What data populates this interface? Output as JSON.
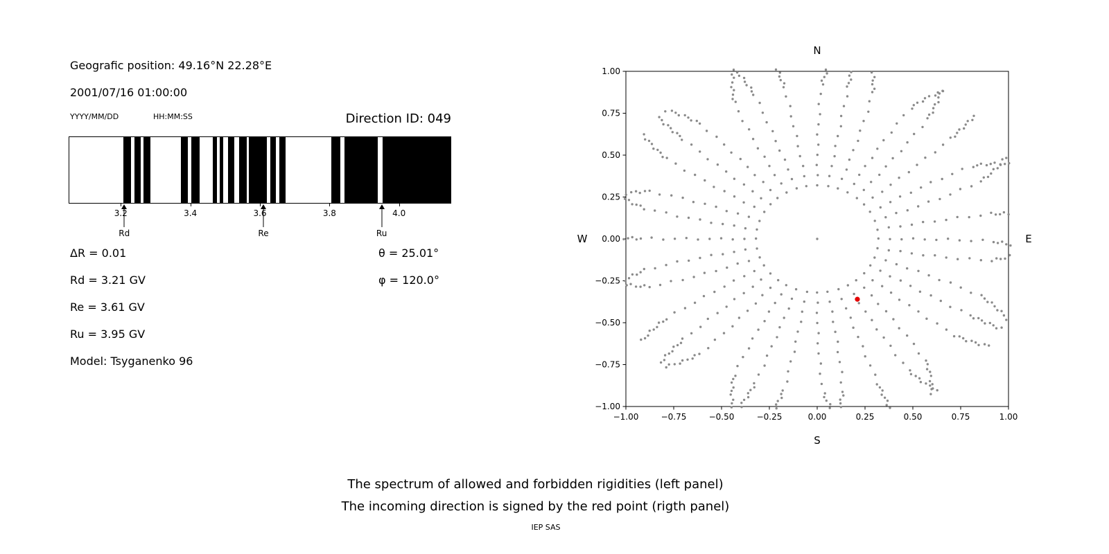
{
  "colors": {
    "band": "#000000",
    "dot": "#8a8a8a",
    "red": "#e50000"
  },
  "header": {
    "position_label": "Geografic position: 49.16°N 22.28°E",
    "datetime": "2001/07/16 01:00:00",
    "date_format": "YYYY/MM/DD",
    "time_format": "HH:MM:SS",
    "direction_id": "Direction ID: 049"
  },
  "params": {
    "delta_r": "ΔR = 0.01",
    "theta": "θ = 25.01°",
    "rd": "Rd = 3.21 GV",
    "phi": "φ = 120.0°",
    "re": "Re = 3.61 GV",
    "ru": "Ru = 3.95 GV",
    "model": "Model: Tsyganenko 96"
  },
  "captions": {
    "line1": "The spectrum of allowed and forbidden rigidities (left panel)",
    "line2": "The incoming direction is signed by the red point (rigth panel)",
    "credit": "IEP SAS"
  },
  "chart_data": [
    {
      "name": "rigidity-spectrum",
      "type": "bar",
      "xlim": [
        3.05,
        4.15
      ],
      "xticks": [
        3.2,
        3.4,
        3.6,
        3.8,
        4.0
      ],
      "allowed_bands_gv": [
        [
          3.205,
          3.228
        ],
        [
          3.238,
          3.256
        ],
        [
          3.264,
          3.284
        ],
        [
          3.372,
          3.392
        ],
        [
          3.402,
          3.425
        ],
        [
          3.464,
          3.476
        ],
        [
          3.483,
          3.494
        ],
        [
          3.508,
          3.526
        ],
        [
          3.54,
          3.562
        ],
        [
          3.568,
          3.62
        ],
        [
          3.63,
          3.646
        ],
        [
          3.656,
          3.674
        ],
        [
          3.806,
          3.832
        ],
        [
          3.844,
          3.94
        ],
        [
          3.954,
          4.15
        ]
      ],
      "markers": [
        {
          "label": "Rd",
          "value": 3.21
        },
        {
          "label": "Re",
          "value": 3.61
        },
        {
          "label": "Ru",
          "value": 3.95
        }
      ]
    },
    {
      "name": "asymptotic-directions",
      "type": "scatter",
      "xlim": [
        -1,
        1
      ],
      "ylim": [
        -1,
        1
      ],
      "xticks": [
        -1,
        -0.75,
        -0.5,
        -0.25,
        0,
        0.25,
        0.5,
        0.75,
        1
      ],
      "yticks": [
        -1,
        -0.75,
        -0.5,
        -0.25,
        0,
        0.25,
        0.5,
        0.75,
        1
      ],
      "compass": {
        "top": "N",
        "bottom": "S",
        "left": "W",
        "right": "E"
      },
      "spokes": {
        "count": 36,
        "angle_step_deg": 10,
        "r_inner": 0.32,
        "r_outer": 1.1,
        "points_per_spoke": 19
      },
      "center_dot": {
        "x": 0,
        "y": 0
      },
      "red_point": {
        "x": 0.21,
        "y": -0.36
      }
    }
  ]
}
